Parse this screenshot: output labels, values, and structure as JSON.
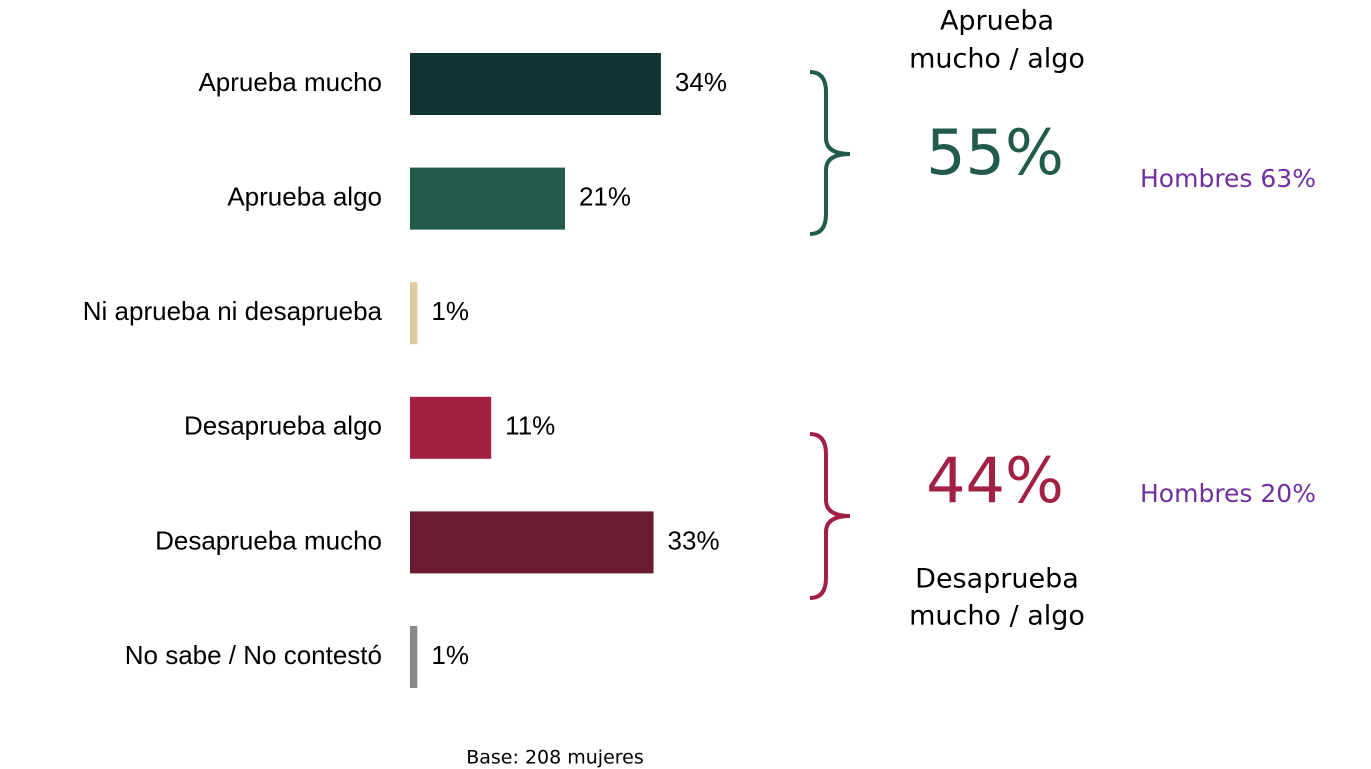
{
  "chart_data": {
    "type": "bar",
    "orientation": "horizontal",
    "categories": [
      "Aprueba mucho",
      "Aprueba algo",
      "Ni aprueba ni desaprueba",
      "Desaprueba algo",
      "Desaprueba mucho",
      "No sabe / No contestó"
    ],
    "values": [
      34,
      21,
      1,
      11,
      33,
      1
    ],
    "value_labels": [
      "34%",
      "21%",
      "1%",
      "11%",
      "33%",
      "1%"
    ],
    "colors": [
      "#133330",
      "#225b4c",
      "#dccba0",
      "#a32045",
      "#6a1b30",
      "#8a8a8a"
    ],
    "groups": [
      {
        "lines": [
          "Aprueba",
          "mucho / algo"
        ],
        "total": "55%",
        "comparison": "Hombres 63%",
        "color": "#225b4c"
      },
      {
        "lines": [
          "Desaprueba",
          "mucho / algo"
        ],
        "total": "44%",
        "comparison": "Hombres 20%",
        "color": "#a32045"
      }
    ],
    "footnote": "Base: 208 mujeres"
  }
}
